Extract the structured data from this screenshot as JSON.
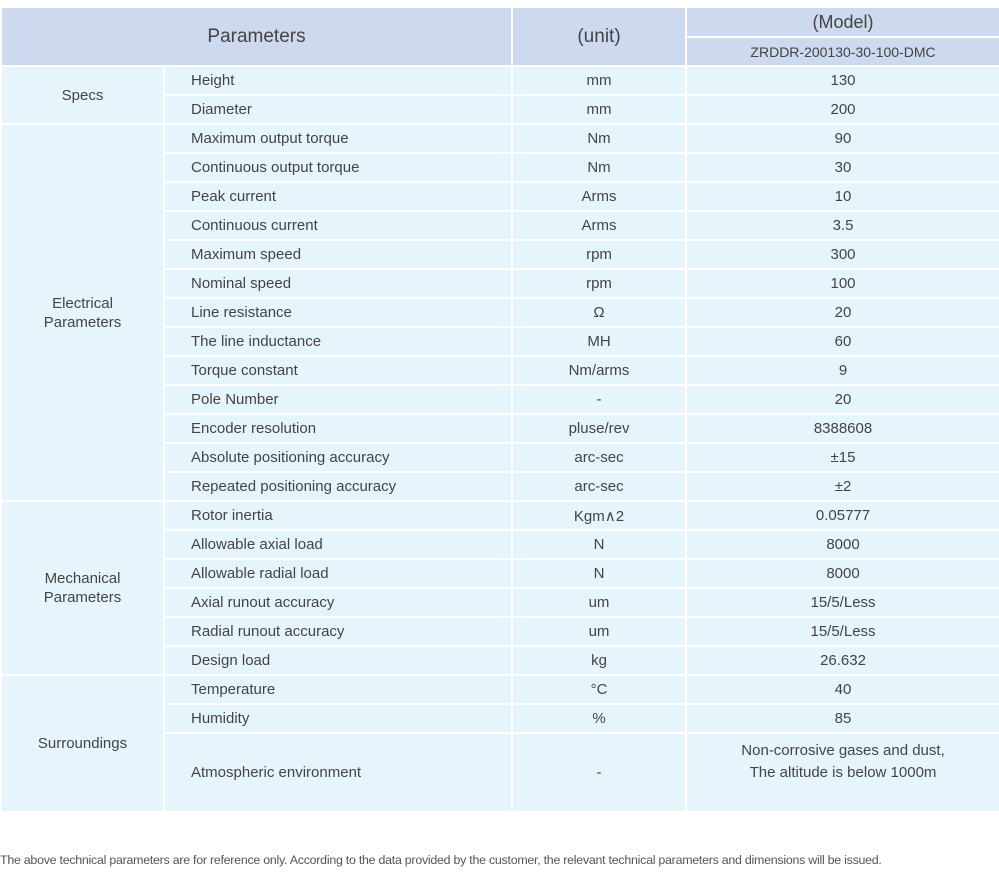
{
  "header": {
    "parameters": "Parameters",
    "unit": "(unit)",
    "model": "(Model)",
    "model_name": "ZRDDR-200130-30-100-DMC"
  },
  "groups": [
    {
      "label": "Specs",
      "rows": [
        [
          "Height",
          "mm",
          "130"
        ],
        [
          "Diameter",
          "mm",
          "200"
        ]
      ]
    },
    {
      "label": "Electrical\nParameters",
      "rows": [
        [
          "Maximum output torque",
          "Nm",
          "90"
        ],
        [
          "Continuous output torque",
          "Nm",
          "30"
        ],
        [
          "Peak current",
          "Arms",
          "10"
        ],
        [
          "Continuous current",
          "Arms",
          "3.5"
        ],
        [
          "Maximum speed",
          "rpm",
          "300"
        ],
        [
          "Nominal speed",
          "rpm",
          "100"
        ],
        [
          "Line resistance",
          "Ω",
          "20"
        ],
        [
          "The line inductance",
          "MH",
          "60"
        ],
        [
          "Torque constant",
          "Nm/arms",
          "9"
        ],
        [
          "Pole Number",
          "-",
          "20"
        ],
        [
          "Encoder resolution",
          "pluse/rev",
          "8388608"
        ],
        [
          "Absolute positioning accuracy",
          "arc-sec",
          "±15"
        ],
        [
          "Repeated positioning accuracy",
          "arc-sec",
          "±2"
        ]
      ]
    },
    {
      "label": "Mechanical\nParameters",
      "rows": [
        [
          "Rotor inertia",
          "Kgm∧2",
          "0.05777"
        ],
        [
          "Allowable axial load",
          "N",
          "8000"
        ],
        [
          "Allowable radial load",
          "N",
          "8000"
        ],
        [
          "Axial runout accuracy",
          "um",
          "15/5/Less"
        ],
        [
          "Radial runout accuracy",
          "um",
          "15/5/Less"
        ],
        [
          "Design load",
          "kg",
          "26.632"
        ]
      ]
    },
    {
      "label": "Surroundings",
      "rows": [
        [
          "Temperature",
          "°C",
          "40"
        ],
        [
          "Humidity",
          "%",
          "85"
        ],
        [
          "Atmospheric environment",
          "-",
          "Non-corrosive gases and dust,\nThe altitude is below 1000m"
        ]
      ]
    }
  ],
  "footnote": "The above technical parameters are for reference only. According to the data provided by the customer, the relevant technical parameters and dimensions will be issued."
}
